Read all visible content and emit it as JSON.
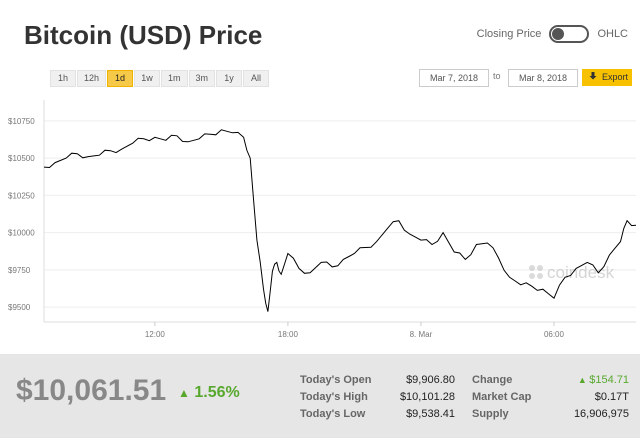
{
  "header": {
    "title": "Bitcoin (USD) Price"
  },
  "toggle": {
    "left_label": "Closing Price",
    "right_label": "OHLC"
  },
  "ranges": [
    "1h",
    "12h",
    "1d",
    "1w",
    "1m",
    "3m",
    "1y",
    "All"
  ],
  "active_range": "1d",
  "date_range": {
    "from": "Mar 7, 2018",
    "to_label": "to",
    "to": "Mar 8, 2018"
  },
  "export": {
    "label": "Export",
    "icon": "download-arrow-icon"
  },
  "watermark": "coindesk",
  "colors": {
    "accent": "#f7c948",
    "up": "#58a82e",
    "line": "#000000"
  },
  "chart_data": {
    "type": "line",
    "ylabel": "",
    "xlabel": "",
    "y_ticks": [
      "$10750",
      "$10500",
      "$10250",
      "$10000",
      "$9750",
      "$9500"
    ],
    "y_tick_values": [
      10750,
      10500,
      10250,
      10000,
      9750,
      9500
    ],
    "x_ticks": [
      "12:00",
      "18:00",
      "8. Mar",
      "06:00"
    ],
    "x_tick_hours": [
      12,
      18,
      24,
      30
    ],
    "x_range_hours": [
      7.0,
      33.7
    ],
    "ylim": [
      9400,
      10850
    ],
    "series": [
      {
        "hours": [
          7.0,
          7.5,
          8.0,
          8.5,
          9.0,
          9.5,
          10.0,
          10.5,
          11.0,
          11.5,
          12.0,
          12.5,
          13.0,
          13.5,
          14.0,
          14.5,
          15.0,
          15.5,
          16.0,
          16.3,
          16.6,
          16.9,
          17.1,
          17.3,
          17.5,
          17.7,
          18.0,
          18.5,
          19.0,
          19.5,
          20.0,
          20.5,
          21.0,
          21.5,
          22.0,
          22.5,
          23.0,
          23.5,
          24.0,
          24.5,
          25.0,
          25.5,
          26.0,
          26.5,
          27.0,
          27.5,
          28.0,
          28.5,
          29.0,
          29.5,
          30.0,
          30.5,
          31.0,
          31.5,
          32.0,
          32.5,
          33.0,
          33.3,
          33.7
        ],
        "values": [
          10440,
          10470,
          10500,
          10530,
          10510,
          10520,
          10550,
          10560,
          10600,
          10630,
          10640,
          10620,
          10650,
          10610,
          10630,
          10660,
          10690,
          10670,
          10640,
          10500,
          9950,
          9620,
          9470,
          9740,
          9800,
          9720,
          9860,
          9760,
          9730,
          9800,
          9770,
          9820,
          9860,
          9900,
          9940,
          10030,
          10080,
          9990,
          9950,
          9920,
          10000,
          9870,
          9820,
          9920,
          9930,
          9830,
          9700,
          9650,
          9640,
          9620,
          9560,
          9700,
          9760,
          9800,
          9730,
          9850,
          9940,
          10080,
          10050
        ]
      }
    ]
  },
  "summary": {
    "price": "$10,061.51",
    "change_pct": "1.56%",
    "left": [
      {
        "label": "Today's Open",
        "value": "$9,906.80"
      },
      {
        "label": "Today's High",
        "value": "$10,101.28"
      },
      {
        "label": "Today's Low",
        "value": "$9,538.41"
      }
    ],
    "right": [
      {
        "label": "Change",
        "value": "$154.71"
      },
      {
        "label": "Market Cap",
        "value": "$0.17T"
      },
      {
        "label": "Supply",
        "value": "16,906,975"
      }
    ]
  }
}
